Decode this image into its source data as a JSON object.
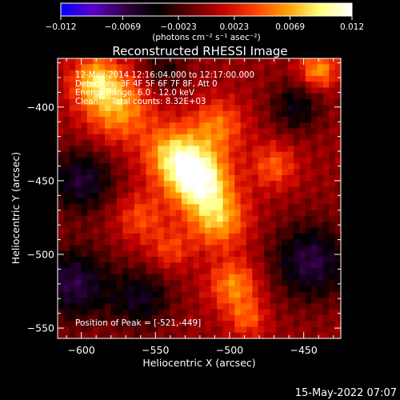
{
  "chart_data": {
    "type": "heatmap",
    "title": "Reconstructed RHESSI Image",
    "xlabel": "Heliocentric X (arcsec)",
    "ylabel": "Heliocentric Y (arcsec)",
    "xlim": [
      -616,
      -425
    ],
    "ylim": [
      -557,
      -367
    ],
    "x_ticks": [
      -600,
      -550,
      -500,
      -450
    ],
    "y_ticks": [
      -550,
      -500,
      -450,
      -400
    ],
    "x_tick_labels": [
      "−600",
      "−550",
      "−500",
      "−450"
    ],
    "y_tick_labels": [
      "−550",
      "−500",
      "−450",
      "−400"
    ],
    "colorbar": {
      "range": [
        -0.012,
        0.012
      ],
      "ticks": [
        -0.012,
        -0.0069,
        -0.0023,
        0.0023,
        0.0069,
        0.012
      ],
      "tick_labels": [
        "−0.012",
        "−0.0069",
        "−0.0023",
        "0.0023",
        "0.0069",
        "0.012"
      ],
      "unit_label": "(photons cm⁻² s⁻¹ asec⁻²)",
      "colormap": [
        "#0000ff",
        "#5a00c8",
        "#300040",
        "#000000",
        "#600000",
        "#c00000",
        "#ff4000",
        "#ffa000",
        "#ffff80",
        "#ffffff"
      ]
    },
    "annotations": [
      "12-May-2014 12:16:04.000 to 12:17:00.000",
      "Detectors: 3F 4F 5F 6F 7F 8F, Att 0",
      "Energy Range: 6.0 - 12.0 keV",
      "Clean     Total counts: 8.32E+03"
    ],
    "peak_label": "Position of Peak = [-521,-449]",
    "peak": [
      -521,
      -449
    ],
    "sources": [
      {
        "x": -521,
        "y": -449,
        "amplitude": 0.0115,
        "sigma": 14
      },
      {
        "x": -538,
        "y": -432,
        "amplitude": 0.0075,
        "sigma": 14
      },
      {
        "x": -508,
        "y": -476,
        "amplitude": 0.0072,
        "sigma": 14
      },
      {
        "x": -575,
        "y": -401,
        "amplitude": 0.0065,
        "sigma": 16
      },
      {
        "x": -590,
        "y": -382,
        "amplitude": 0.007,
        "sigma": 12
      },
      {
        "x": -508,
        "y": -413,
        "amplitude": 0.0052,
        "sigma": 13
      },
      {
        "x": -497,
        "y": -521,
        "amplitude": 0.006,
        "sigma": 12
      },
      {
        "x": -470,
        "y": -440,
        "amplitude": 0.0045,
        "sigma": 11
      },
      {
        "x": -440,
        "y": -375,
        "amplitude": 0.0065,
        "sigma": 9
      },
      {
        "x": -560,
        "y": -475,
        "amplitude": 0.004,
        "sigma": 12
      },
      {
        "x": -488,
        "y": -544,
        "amplitude": 0.0042,
        "sigma": 9
      },
      {
        "x": -540,
        "y": -497,
        "amplitude": 0.0035,
        "sigma": 10
      },
      {
        "x": -600,
        "y": -450,
        "amplitude": -0.006,
        "sigma": 15
      },
      {
        "x": -605,
        "y": -520,
        "amplitude": -0.0065,
        "sigma": 17
      },
      {
        "x": -560,
        "y": -530,
        "amplitude": -0.005,
        "sigma": 14
      },
      {
        "x": -445,
        "y": -505,
        "amplitude": -0.0065,
        "sigma": 18
      },
      {
        "x": -455,
        "y": -400,
        "amplitude": -0.0045,
        "sigma": 12
      },
      {
        "x": -545,
        "y": -375,
        "amplitude": -0.0035,
        "sigma": 10
      }
    ]
  },
  "footer": {
    "date": "15-May-2022 07:07"
  }
}
